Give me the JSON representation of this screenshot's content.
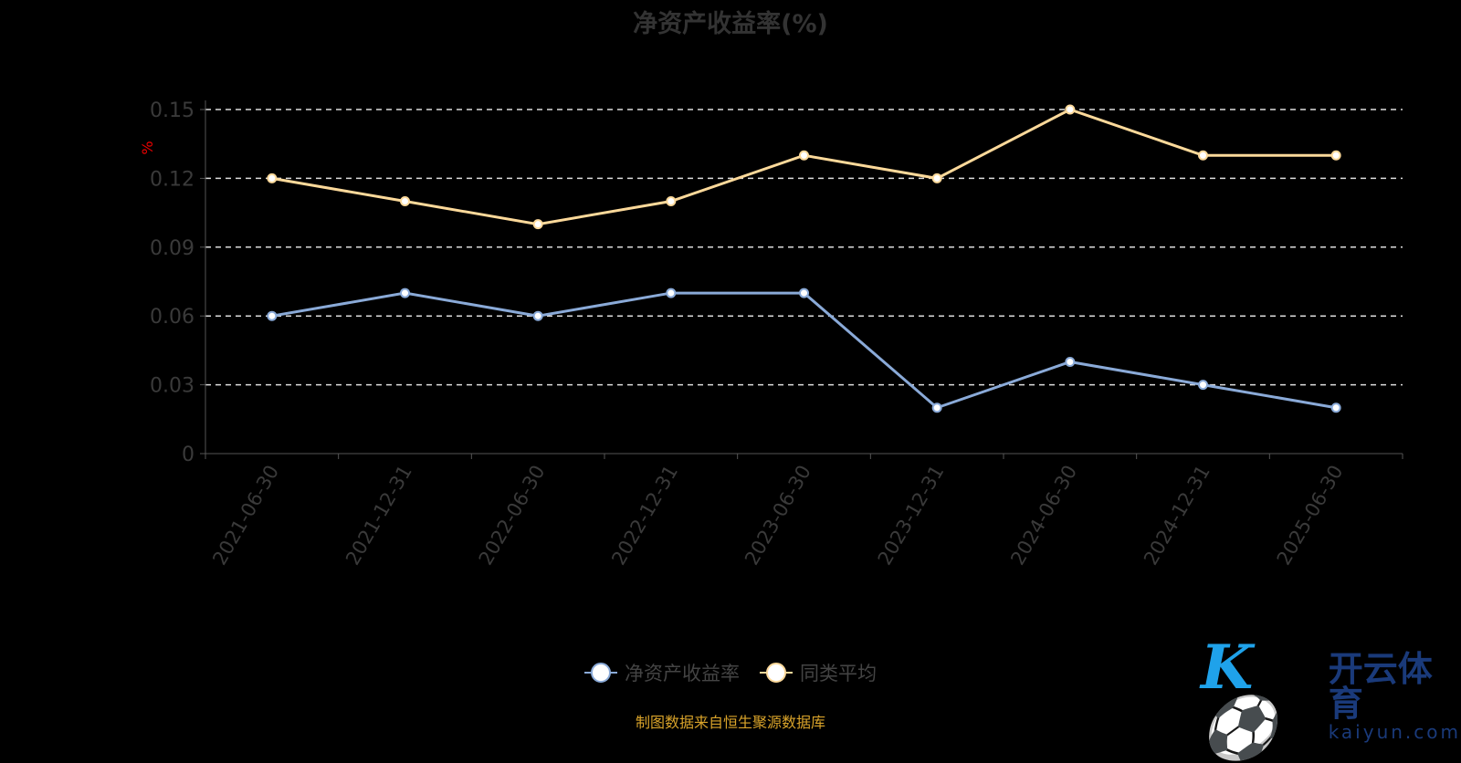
{
  "chart_data": {
    "type": "line",
    "title": "净资产收益率(%)",
    "ylabel": "%",
    "xlabel": "",
    "categories": [
      "2021-06-30",
      "2021-12-31",
      "2022-06-30",
      "2022-12-31",
      "2023-06-30",
      "2023-12-31",
      "2024-06-30",
      "2024-12-31",
      "2025-06-30"
    ],
    "yticks": [
      "0",
      "0.03",
      "0.06",
      "0.09",
      "0.12",
      "0.15"
    ],
    "ylim": [
      0,
      0.15
    ],
    "grid": true,
    "legend_position": "bottom",
    "series": [
      {
        "name": "净资产收益率",
        "color": "#8aaad8",
        "values": [
          0.06,
          0.07,
          0.06,
          0.07,
          0.07,
          0.02,
          0.04,
          0.03,
          0.02
        ]
      },
      {
        "name": "同类平均",
        "color": "#fcd99a",
        "values": [
          0.12,
          0.11,
          0.1,
          0.11,
          0.13,
          0.12,
          0.15,
          0.13,
          0.13
        ]
      }
    ]
  },
  "source": "制图数据来自恒生聚源数据库",
  "watermark": {
    "brand_cn": "开云体育",
    "brand_en": "kaiyun.com"
  }
}
